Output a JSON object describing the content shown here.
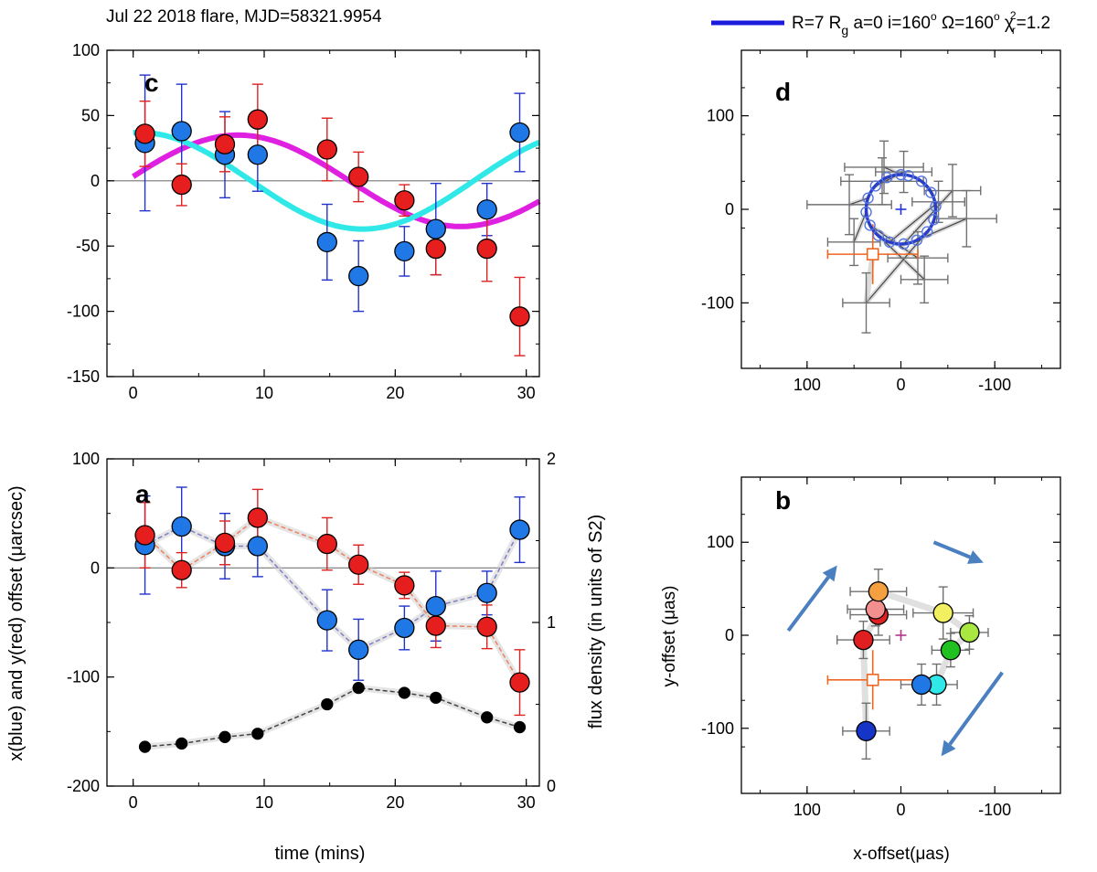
{
  "figure": {
    "header_title": "Jul 22 2018 flare, MJD=58321.9954",
    "legend": {
      "label_prefix": "R=7 R",
      "label_g": "g",
      "label_a": " a=0 i=160",
      "label_o1": "o",
      "label_omega": " Ω=160",
      "label_o2": "o",
      "label_chi": " χ",
      "label_r": "r",
      "label_2": "2",
      "label_suffix": "=1.2",
      "line_color": "#1a1adc"
    },
    "colors": {
      "blue": "#1f78e6",
      "red": "#e61e1e",
      "magenta": "#e020e0",
      "cyan": "#30e8e8",
      "blue_err": "#2233cc",
      "red_err": "#dd2222",
      "black": "#000000",
      "gray_err": "#707070",
      "orange": "#ee6622",
      "arrow": "#4a7fc0",
      "fit_circle": "#2a3ec8",
      "center_blue": "#2233dd",
      "center_purple": "#b0358a"
    }
  },
  "chart_data": [
    {
      "panel": "c",
      "type": "scatter",
      "letter": "c",
      "xlim": [
        -2,
        31
      ],
      "ylim": [
        -150,
        100
      ],
      "xticks": [
        0,
        10,
        20,
        30
      ],
      "yticks": [
        -150,
        -100,
        -50,
        0,
        50,
        100
      ],
      "x_tick_labels": [
        "0",
        "10",
        "20",
        "30"
      ],
      "y_tick_labels": [
        "-150",
        "-100",
        "-50",
        "0",
        "50",
        "100"
      ],
      "series": [
        {
          "name": "x (blue)",
          "color": "blue",
          "x": [
            0.9,
            3.7,
            7.0,
            9.5,
            14.8,
            17.2,
            20.7,
            23.1,
            27.0,
            29.5
          ],
          "y": [
            29,
            38,
            20,
            20,
            -47,
            -73,
            -54,
            -37,
            -22,
            37
          ],
          "err": [
            52,
            36,
            33,
            28,
            29,
            27,
            19,
            35,
            20,
            30
          ]
        },
        {
          "name": "y (red)",
          "color": "red",
          "x": [
            0.9,
            3.7,
            7.0,
            9.5,
            14.8,
            17.2,
            20.7,
            23.1,
            27.0,
            29.5
          ],
          "y": [
            36,
            -3,
            28,
            47,
            24,
            3,
            -15,
            -52,
            -52,
            -104
          ],
          "err": [
            25,
            16,
            21,
            27,
            24,
            19,
            12,
            20,
            25,
            30
          ]
        }
      ],
      "curves": [
        {
          "name": "magenta model",
          "color": "magenta",
          "amplitude": 35,
          "period": 34,
          "phase_peak": 8
        },
        {
          "name": "cyan model",
          "color": "cyan",
          "amplitude": 37,
          "period": 34,
          "phase_peak": 0.5
        }
      ]
    },
    {
      "panel": "a",
      "type": "scatter",
      "letter": "a",
      "xlim": [
        -2,
        31
      ],
      "ylim": [
        -200,
        100
      ],
      "xticks": [
        0,
        10,
        20,
        30
      ],
      "yticks": [
        -200,
        -100,
        0,
        100
      ],
      "x_tick_labels": [
        "0",
        "10",
        "20",
        "30"
      ],
      "y_tick_labels": [
        "-200",
        "-100",
        "0",
        "100"
      ],
      "y2lim": [
        0,
        2
      ],
      "y2ticks": [
        0,
        1,
        2
      ],
      "y2_tick_labels": [
        "0",
        "1",
        "2"
      ],
      "xlabel": "time (mins)",
      "ylabel": "x(blue) and y(red) offset (μarcsec)",
      "y2label": "flux density (in units of S2)",
      "series": [
        {
          "name": "x (blue)",
          "color": "blue",
          "x": [
            0.9,
            3.7,
            7.0,
            9.5,
            14.8,
            17.2,
            20.7,
            23.1,
            27.0,
            29.5
          ],
          "y": [
            21,
            38,
            20,
            20,
            -48,
            -75,
            -55,
            -35,
            -23,
            35
          ],
          "err": [
            45,
            36,
            30,
            28,
            28,
            28,
            20,
            32,
            20,
            30
          ]
        },
        {
          "name": "y (red)",
          "color": "red",
          "x": [
            0.9,
            3.7,
            7.0,
            9.5,
            14.8,
            17.2,
            20.7,
            23.1,
            27.0,
            29.5
          ],
          "y": [
            30,
            -2,
            23,
            46,
            22,
            3,
            -16,
            -53,
            -54,
            -105
          ],
          "err": [
            30,
            16,
            20,
            26,
            24,
            18,
            12,
            20,
            20,
            30
          ]
        },
        {
          "name": "flux density",
          "color": "black",
          "axis": "right",
          "x": [
            0.9,
            3.7,
            7.0,
            9.5,
            14.8,
            17.2,
            20.7,
            23.1,
            27.0,
            29.5
          ],
          "y": [
            0.24,
            0.26,
            0.3,
            0.32,
            0.5,
            0.6,
            0.57,
            0.54,
            0.42,
            0.36
          ]
        }
      ]
    },
    {
      "panel": "d",
      "type": "scatter",
      "letter": "d",
      "xlim": [
        170,
        -170
      ],
      "ylim": [
        -170,
        170
      ],
      "xticks": [
        100,
        0,
        -100
      ],
      "yticks": [
        -100,
        0,
        100
      ],
      "x_tick_labels": [
        "100",
        "0",
        "-100"
      ],
      "y_tick_labels": [
        "-100",
        "0",
        "100"
      ],
      "fit_circle": {
        "cx": 0,
        "cy": 0,
        "r": 37
      },
      "model_points": [
        [
          0,
          37
        ],
        [
          15,
          34
        ],
        [
          27,
          25
        ],
        [
          35,
          12
        ],
        [
          37,
          -3
        ],
        [
          33,
          -17
        ],
        [
          24,
          -28
        ],
        [
          12,
          -35
        ],
        [
          -3,
          -37
        ],
        [
          -17,
          -33
        ],
        [
          -28,
          -24
        ],
        [
          -35,
          -11
        ],
        [
          -37,
          3
        ],
        [
          -32,
          18
        ],
        [
          -22,
          30
        ],
        [
          -8,
          36
        ]
      ],
      "data_points": [
        {
          "x": 18,
          "y": 45,
          "ex": 42,
          "ey": 28
        },
        {
          "x": 20,
          "y": 30,
          "ex": 44,
          "ey": 25
        },
        {
          "x": -3,
          "y": 40,
          "ex": 30,
          "ey": 22
        },
        {
          "x": 55,
          "y": 5,
          "ex": 45,
          "ey": 32
        },
        {
          "x": 50,
          "y": -35,
          "ex": 28,
          "ey": 25
        },
        {
          "x": -18,
          "y": -52,
          "ex": 32,
          "ey": 28
        },
        {
          "x": -25,
          "y": -75,
          "ex": 25,
          "ey": 25
        },
        {
          "x": -40,
          "y": 8,
          "ex": 28,
          "ey": 22
        },
        {
          "x": -55,
          "y": 20,
          "ex": 30,
          "ey": 28
        },
        {
          "x": -70,
          "y": -10,
          "ex": 32,
          "ey": 30
        },
        {
          "x": 37,
          "y": -100,
          "ex": 25,
          "ey": 32
        }
      ],
      "orange_point": {
        "x": 30,
        "y": -48,
        "ex": 48,
        "ey": 32
      }
    },
    {
      "panel": "b",
      "type": "scatter",
      "letter": "b",
      "xlim": [
        170,
        -170
      ],
      "ylim": [
        -170,
        170
      ],
      "xticks": [
        100,
        0,
        -100
      ],
      "yticks": [
        -100,
        0,
        100
      ],
      "x_tick_labels": [
        "100",
        "0",
        "-100"
      ],
      "y_tick_labels": [
        "-100",
        "0",
        "100"
      ],
      "xlabel": "x-offset(μas)",
      "ylabel": "y-offset (μas)",
      "points": [
        {
          "x": 37,
          "y": -103,
          "ex": 25,
          "ey": 30,
          "color": "#1535c8"
        },
        {
          "x": 40,
          "y": -5,
          "ex": 28,
          "ey": 20,
          "color": "#e02020"
        },
        {
          "x": 24,
          "y": 22,
          "ex": 30,
          "ey": 22,
          "color": "#e02020"
        },
        {
          "x": 27,
          "y": 28,
          "ex": 30,
          "ey": 18,
          "color": "#f29090"
        },
        {
          "x": 24,
          "y": 47,
          "ex": 30,
          "ey": 24,
          "color": "#f5a040"
        },
        {
          "x": -45,
          "y": 24,
          "ex": 32,
          "ey": 28,
          "color": "#f2f060"
        },
        {
          "x": -73,
          "y": 3,
          "ex": 20,
          "ey": 18,
          "color": "#a8e840"
        },
        {
          "x": -53,
          "y": -16,
          "ex": 20,
          "ey": 18,
          "color": "#20c020"
        },
        {
          "x": -38,
          "y": -53,
          "ex": 22,
          "ey": 22,
          "color": "#30e8e8"
        },
        {
          "x": -22,
          "y": -53,
          "ex": 22,
          "ey": 22,
          "color": "#1f78e6"
        }
      ],
      "orange_point": {
        "x": 30,
        "y": -48,
        "ex": 48,
        "ey": 32
      },
      "center_marker": {
        "x": 0,
        "y": 0
      },
      "arrows": [
        {
          "from": [
            120,
            5
          ],
          "to": [
            68,
            75
          ]
        },
        {
          "from": [
            -35,
            100
          ],
          "to": [
            -88,
            78
          ]
        },
        {
          "from": [
            -108,
            -40
          ],
          "to": [
            -43,
            -130
          ]
        }
      ]
    }
  ]
}
